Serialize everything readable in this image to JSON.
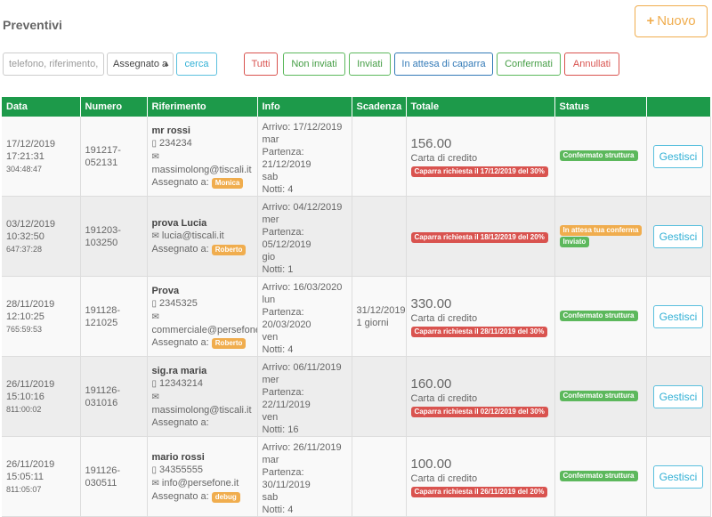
{
  "header": {
    "title": "Preventivi",
    "new_button": {
      "icon": "plus-icon",
      "label": "Nuovo",
      "color": "#f0ad4e"
    }
  },
  "filters": {
    "search_placeholder": "telefono, riferimento, e",
    "assign_select": "Assegnato a",
    "search_button": "cerca",
    "status_buttons": [
      "Tutti",
      "Non inviati",
      "Inviati",
      "In attesa di caparra",
      "Confermati",
      "Annullati"
    ]
  },
  "table": {
    "header_color": "#1d9a4a",
    "columns": [
      "Data",
      "Numero",
      "Riferimento",
      "Info",
      "Scadenza",
      "Totale",
      "Status",
      ""
    ],
    "action_label": "Gestisci",
    "assigned_label": "Assegnato a:",
    "rows": [
      {
        "date": "17/12/2019",
        "time": "17:21:31",
        "elapsed": "304:48:47",
        "number": "191217-052131",
        "name": "mr rossi",
        "phone": "234234",
        "email": "massimolong@tiscali.it",
        "assignee": "Monica",
        "info": [
          "Arrivo: 17/12/2019",
          "mar",
          "Partenza: 21/12/2019",
          "sab",
          "Notti: 4"
        ],
        "deadline": "",
        "deadline_days": "",
        "total": "156.00",
        "payment": "Carta di credito",
        "deposit": "Caparra richiesta il 17/12/2019 del 30%",
        "status": [
          "Confermato struttura"
        ]
      },
      {
        "date": "03/12/2019",
        "time": "10:32:50",
        "elapsed": "647:37:28",
        "number": "191203-103250",
        "name": "prova Lucia",
        "phone": "",
        "email": "lucia@tiscali.it",
        "assignee": "Roberto",
        "info": [
          "Arrivo: 04/12/2019",
          "mer",
          "Partenza: 05/12/2019",
          "gio",
          "Notti: 1"
        ],
        "deadline": "",
        "deadline_days": "",
        "total": "",
        "payment": "",
        "deposit": "Caparra richiesta il 18/12/2019 del 20%",
        "status": [
          "In attesa tua conferma",
          "Inviato"
        ]
      },
      {
        "date": "28/11/2019",
        "time": "12:10:25",
        "elapsed": "765:59:53",
        "number": "191128-121025",
        "name": "Prova",
        "phone": "2345325",
        "email": "commerciale@persefone.it",
        "assignee": "Roberto",
        "info": [
          "Arrivo: 16/03/2020",
          "lun",
          "Partenza: 20/03/2020",
          "ven",
          "Notti: 4"
        ],
        "deadline": "31/12/2019",
        "deadline_days": "1 giorni",
        "total": "330.00",
        "payment": "Carta di credito",
        "deposit": "Caparra richiesta il 28/11/2019 del 30%",
        "status": [
          "Confermato struttura"
        ]
      },
      {
        "date": "26/11/2019",
        "time": "15:10:16",
        "elapsed": "811:00:02",
        "number": "191126-031016",
        "name": "sig.ra maria",
        "phone": "12343214",
        "email": "massimolong@tiscali.it",
        "assignee": "",
        "info": [
          "Arrivo: 06/11/2019",
          "mer",
          "Partenza: 22/11/2019",
          "ven",
          "Notti: 16"
        ],
        "deadline": "",
        "deadline_days": "",
        "total": "160.00",
        "payment": "Carta di credito",
        "deposit": "Caparra richiesta il 02/12/2019 del 30%",
        "status": [
          "Confermato struttura"
        ]
      },
      {
        "date": "26/11/2019",
        "time": "15:05:11",
        "elapsed": "811:05:07",
        "number": "191126-030511",
        "name": "mario rossi",
        "phone": "34355555",
        "email": "info@persefone.it",
        "assignee": "debug",
        "info": [
          "Arrivo: 26/11/2019",
          "mar",
          "Partenza: 30/11/2019",
          "sab",
          "Notti: 4"
        ],
        "deadline": "",
        "deadline_days": "",
        "total": "100.00",
        "payment": "Carta di credito",
        "deposit": "Caparra richiesta il 26/11/2019 del 20%",
        "status": [
          "Confermato struttura"
        ]
      }
    ]
  }
}
